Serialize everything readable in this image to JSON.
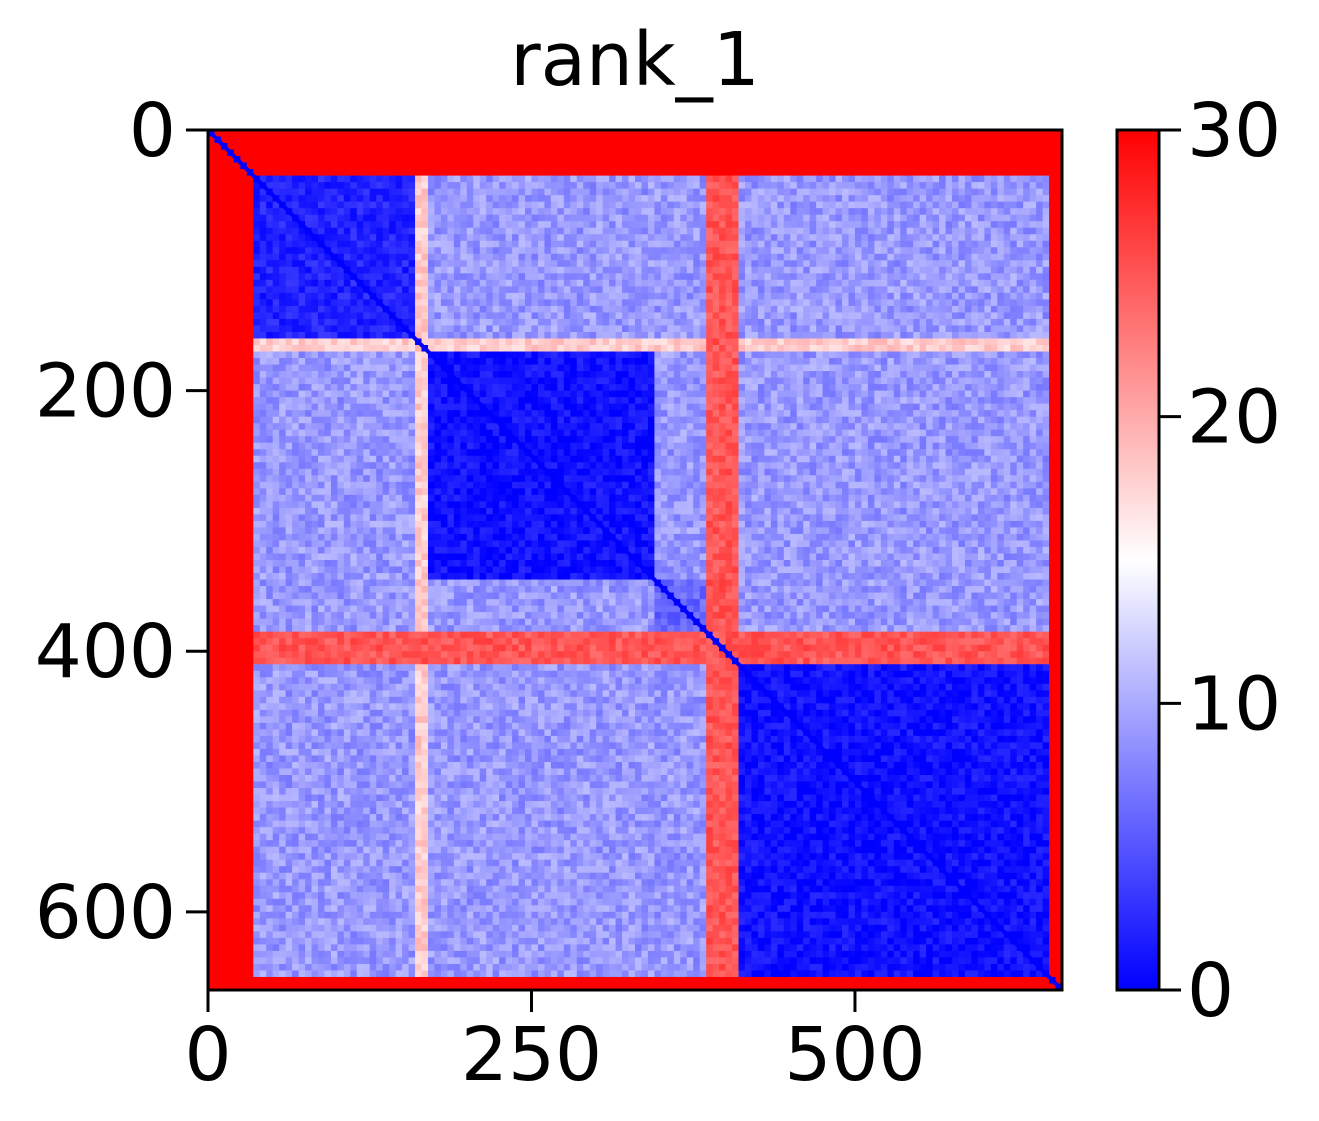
{
  "chart_data": {
    "type": "heatmap",
    "title": "rank_1",
    "xlabel": "",
    "ylabel": "",
    "n_residues": 660,
    "xlim": [
      0,
      660
    ],
    "ylim": [
      0,
      660
    ],
    "x_ticks": [
      0,
      250,
      500
    ],
    "y_ticks": [
      0,
      200,
      400,
      600
    ],
    "colorbar": {
      "min": 0,
      "max": 30,
      "ticks": [
        0,
        10,
        20,
        30
      ],
      "colormap": "bwr",
      "low_color": "#0000ff",
      "mid_color": "#ffffff",
      "high_color": "#ff0000"
    },
    "matrix_description_values": {
      "diagonal": 0,
      "n_terminal_disordered_range": [
        0,
        35
      ],
      "c_terminal_disordered_range": [
        650,
        660
      ],
      "domain_blocks": [
        {
          "range": [
            35,
            165
          ],
          "within": 2,
          "label_free": true
        },
        {
          "range": [
            165,
            345
          ],
          "within": 1
        },
        {
          "range": [
            345,
            385
          ],
          "within": 6
        },
        {
          "range": [
            410,
            650
          ],
          "within": 1
        }
      ],
      "linker_rows": [
        {
          "range": [
            160,
            168
          ],
          "value": 18
        },
        {
          "range": [
            385,
            410
          ],
          "value": 25
        }
      ],
      "inter_domain_value": 9,
      "disordered_value": 30
    }
  }
}
